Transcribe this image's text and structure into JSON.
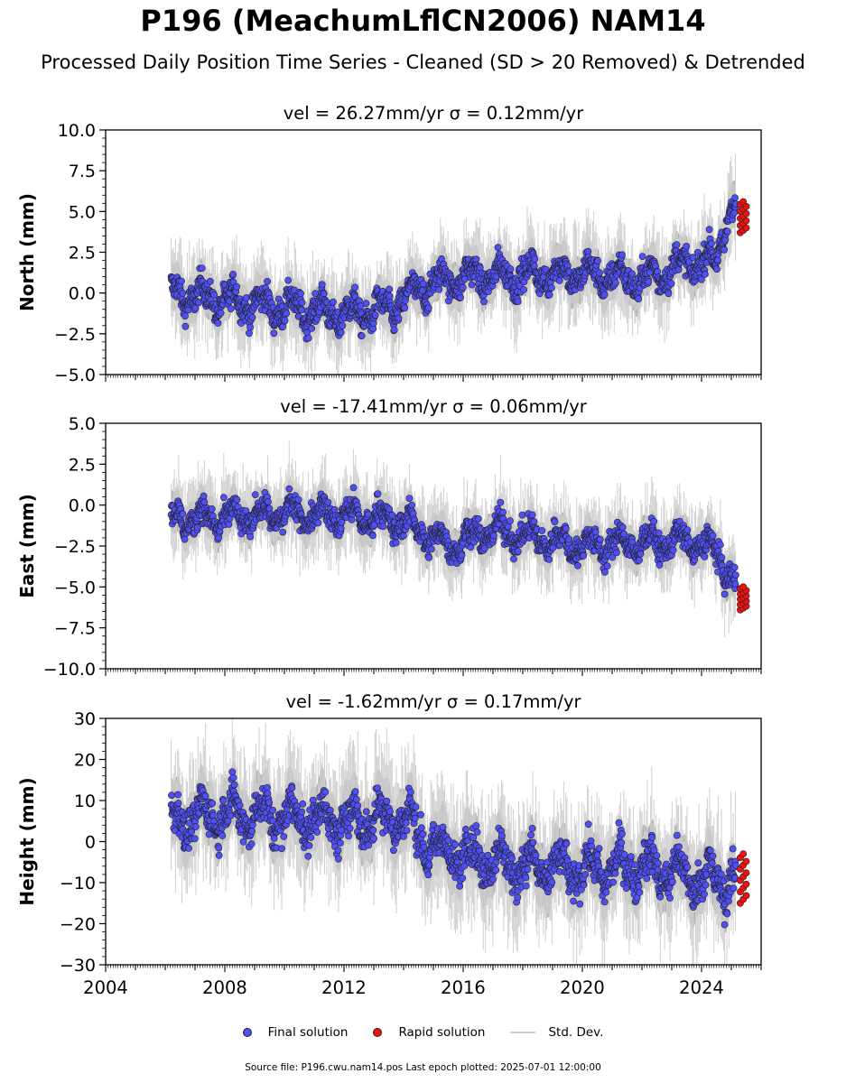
{
  "title": "P196 (MeachumLflCN2006) NAM14",
  "subtitle": "Processed Daily Position Time Series - Cleaned (SD > 20 Removed) & Detrended",
  "footer": "Source file: P196.cwu.nam14.pos  Last epoch plotted: 2025-07-01 12:00:00",
  "legend": {
    "final": "Final solution",
    "rapid": "Rapid solution",
    "stddev": "Std. Dev."
  },
  "colors": {
    "final": "#4f4ff5",
    "rapid": "#ee1111",
    "stddev": "#cfcfcf",
    "band": "#6e6e6e",
    "edge": "#222222"
  },
  "chart_data": [
    {
      "type": "scatter",
      "component": "north",
      "title": "vel = 26.27mm/yr   σ = 0.12mm/yr",
      "ylabel": "North (mm)",
      "ylim": [
        -5,
        10
      ],
      "yticks": [
        "−5.0",
        "−2.5",
        "0.0",
        "2.5",
        "5.0",
        "7.5",
        "10.0"
      ],
      "ytick_values": [
        -5,
        -2.5,
        0,
        2.5,
        5,
        7.5,
        10
      ],
      "xlim": [
        2004,
        2026
      ],
      "trend": [
        [
          2006.2,
          0.0
        ],
        [
          2008.0,
          -0.4
        ],
        [
          2010.0,
          -0.9
        ],
        [
          2012.0,
          -1.3
        ],
        [
          2013.5,
          -1.0
        ],
        [
          2014.8,
          0.5
        ],
        [
          2016.0,
          1.0
        ],
        [
          2018.0,
          1.1
        ],
        [
          2020.0,
          1.2
        ],
        [
          2022.0,
          0.8
        ],
        [
          2023.5,
          1.8
        ],
        [
          2024.5,
          2.0
        ],
        [
          2024.9,
          5.0
        ],
        [
          2025.5,
          5.5
        ]
      ],
      "noise": 1.1,
      "rapid": {
        "x": [
          2025.3,
          2025.5
        ],
        "y": [
          3.7,
          5.6
        ]
      }
    },
    {
      "type": "scatter",
      "component": "east",
      "title": "vel = -17.41mm/yr   σ = 0.06mm/yr",
      "ylabel": "East (mm)",
      "ylim": [
        -10,
        5
      ],
      "yticks": [
        "−10.0",
        "−7.5",
        "−5.0",
        "−2.5",
        "0.0",
        "2.5",
        "5.0"
      ],
      "ytick_values": [
        -10,
        -7.5,
        -5,
        -2.5,
        0,
        2.5,
        5
      ],
      "xlim": [
        2004,
        2026
      ],
      "trend": [
        [
          2006.2,
          -0.8
        ],
        [
          2008.0,
          -0.8
        ],
        [
          2010.0,
          -0.5
        ],
        [
          2012.0,
          -0.6
        ],
        [
          2014.0,
          -1.0
        ],
        [
          2015.5,
          -2.5
        ],
        [
          2017.0,
          -1.5
        ],
        [
          2018.5,
          -2.0
        ],
        [
          2020.0,
          -2.5
        ],
        [
          2022.0,
          -2.3
        ],
        [
          2023.5,
          -2.2
        ],
        [
          2024.5,
          -2.8
        ],
        [
          2025.0,
          -4.5
        ],
        [
          2025.5,
          -5.3
        ]
      ],
      "noise": 1.0,
      "rapid": {
        "x": [
          2025.3,
          2025.5
        ],
        "y": [
          -6.4,
          -5.0
        ]
      }
    },
    {
      "type": "scatter",
      "component": "height",
      "title": "vel = -1.62mm/yr   σ = 0.17mm/yr",
      "ylabel": "Height (mm)",
      "ylim": [
        -30,
        30
      ],
      "yticks": [
        "−30",
        "−20",
        "−10",
        "0",
        "10",
        "20",
        "30"
      ],
      "ytick_values": [
        -30,
        -20,
        -10,
        0,
        10,
        20,
        30
      ],
      "xlim": [
        2004,
        2026
      ],
      "trend": [
        [
          2006.2,
          5
        ],
        [
          2008.0,
          7
        ],
        [
          2010.0,
          6
        ],
        [
          2012.0,
          5
        ],
        [
          2014.0,
          6
        ],
        [
          2015.0,
          -2
        ],
        [
          2016.0,
          -3
        ],
        [
          2018.0,
          -6
        ],
        [
          2020.0,
          -7
        ],
        [
          2022.0,
          -6
        ],
        [
          2024.0,
          -9
        ],
        [
          2025.5,
          -10
        ]
      ],
      "noise": 6,
      "rapid": {
        "x": [
          2025.3,
          2025.5
        ],
        "y": [
          -15,
          -3
        ]
      }
    }
  ],
  "xaxis": {
    "ticks": [
      "2004",
      "2008",
      "2012",
      "2016",
      "2020",
      "2024"
    ],
    "tick_values": [
      2004,
      2008,
      2012,
      2016,
      2020,
      2024
    ]
  }
}
